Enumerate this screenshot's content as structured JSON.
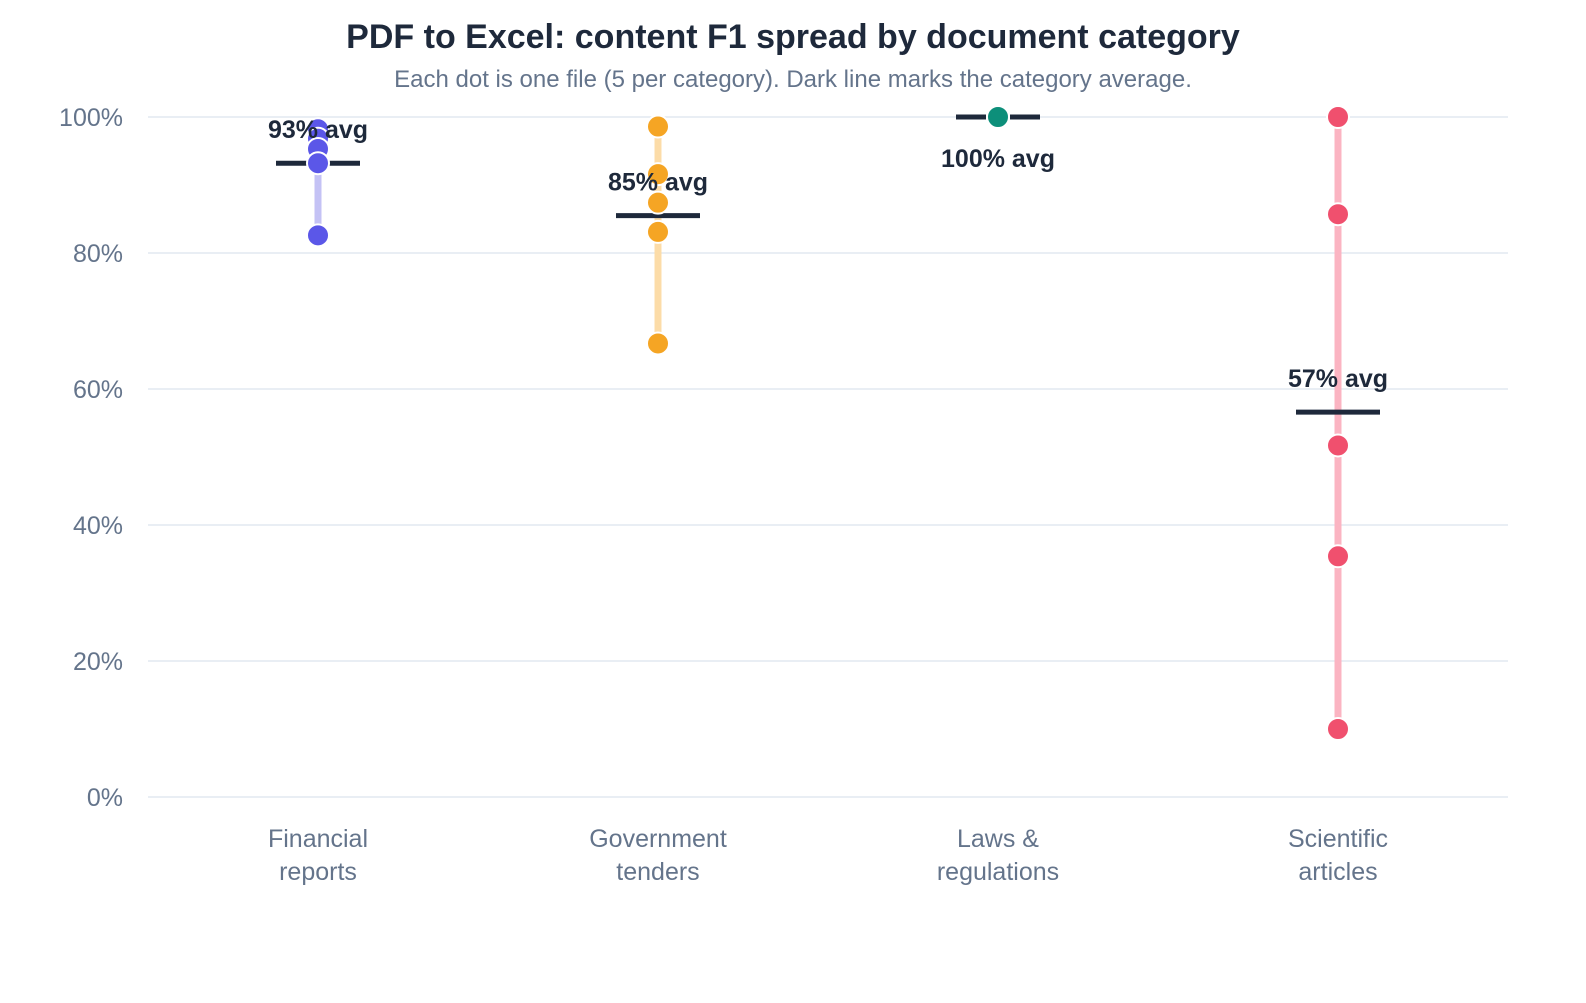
{
  "title": "PDF to Excel: content F1 spread by document category",
  "subtitle": "Each dot is one file (5 per category). Dark line marks the category average.",
  "colors": {
    "grid": "#e2e8f0",
    "axis_text": "#64748b",
    "avg_line": "#1e293b",
    "avg_text": "#1e293b"
  },
  "chart_data": {
    "type": "scatter",
    "title": "PDF to Excel: content F1 spread by document category",
    "subtitle": "Each dot is one file (5 per category). Dark line marks the category average.",
    "xlabel": "",
    "ylabel": "",
    "ylim": [
      0,
      100
    ],
    "yticks": [
      0,
      20,
      40,
      60,
      80,
      100
    ],
    "ytick_labels": [
      "0%",
      "20%",
      "40%",
      "60%",
      "80%",
      "100%"
    ],
    "grid": true,
    "categories": [
      {
        "label_lines": [
          "Financial",
          "reports"
        ],
        "color": "#5b57e8",
        "range_color": "#c4c2f5",
        "values": [
          98.2,
          96.8,
          95.3,
          93.2,
          82.6
        ],
        "average": 93.2,
        "avg_label": "93% avg",
        "avg_label_position": "above"
      },
      {
        "label_lines": [
          "Government",
          "tenders"
        ],
        "color": "#f5a524",
        "range_color": "#fcdca8",
        "values": [
          98.6,
          91.6,
          87.4,
          83.1,
          66.7
        ],
        "average": 85.5,
        "avg_label": "85% avg",
        "avg_label_position": "above"
      },
      {
        "label_lines": [
          "Laws &",
          "regulations"
        ],
        "color": "#0d8f7a",
        "range_color": "#9fd8cc",
        "values": [
          100,
          100,
          100,
          100,
          100
        ],
        "average": 100,
        "avg_label": "100% avg",
        "avg_label_position": "below"
      },
      {
        "label_lines": [
          "Scientific",
          "articles"
        ],
        "color": "#f0506e",
        "range_color": "#fbb4c2",
        "values": [
          100,
          85.7,
          51.7,
          35.4,
          10.0
        ],
        "average": 56.6,
        "avg_label": "57% avg",
        "avg_label_position": "above"
      }
    ]
  }
}
